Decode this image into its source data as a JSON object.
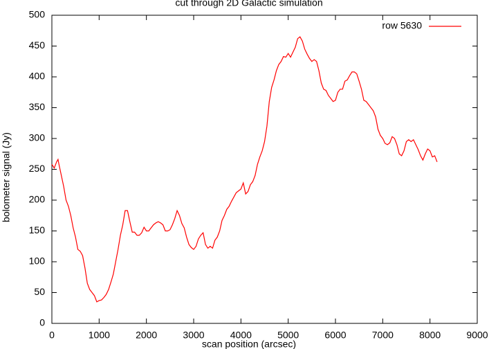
{
  "chart_data": {
    "type": "line",
    "title": "cut through 2D Galactic simulation",
    "x_label": "scan position (arcsec)",
    "y_label": "bolometer signal (Jy)",
    "legend_position": "top-right",
    "xlim": [
      0,
      9000
    ],
    "xticks": [
      0,
      1000,
      2000,
      3000,
      4000,
      5000,
      6000,
      7000,
      8000,
      9000
    ],
    "ylim": [
      0,
      500
    ],
    "yticks": [
      0,
      50,
      100,
      150,
      200,
      250,
      300,
      350,
      400,
      450,
      500
    ],
    "x": [
      0,
      50,
      100,
      130,
      150,
      200,
      250,
      300,
      350,
      400,
      450,
      500,
      550,
      600,
      650,
      700,
      750,
      800,
      850,
      900,
      950,
      1000,
      1050,
      1100,
      1150,
      1200,
      1250,
      1300,
      1350,
      1400,
      1450,
      1500,
      1550,
      1600,
      1650,
      1700,
      1750,
      1800,
      1850,
      1900,
      1950,
      2000,
      2050,
      2100,
      2150,
      2200,
      2250,
      2300,
      2350,
      2400,
      2450,
      2500,
      2550,
      2600,
      2650,
      2700,
      2750,
      2800,
      2850,
      2900,
      2950,
      3000,
      3050,
      3100,
      3150,
      3200,
      3250,
      3300,
      3350,
      3400,
      3450,
      3500,
      3550,
      3600,
      3650,
      3700,
      3750,
      3800,
      3850,
      3900,
      3950,
      4000,
      4050,
      4100,
      4150,
      4200,
      4250,
      4300,
      4350,
      4400,
      4450,
      4500,
      4550,
      4600,
      4650,
      4700,
      4750,
      4800,
      4850,
      4900,
      4950,
      5000,
      5050,
      5100,
      5150,
      5200,
      5250,
      5300,
      5350,
      5400,
      5450,
      5500,
      5550,
      5600,
      5650,
      5700,
      5750,
      5800,
      5850,
      5900,
      5950,
      6000,
      6050,
      6100,
      6150,
      6200,
      6250,
      6300,
      6350,
      6400,
      6450,
      6500,
      6550,
      6600,
      6650,
      6700,
      6750,
      6800,
      6850,
      6900,
      6950,
      7000,
      7050,
      7100,
      7150,
      7200,
      7250,
      7300,
      7350,
      7400,
      7450,
      7500,
      7550,
      7600,
      7650,
      7700,
      7750,
      7800,
      7850,
      7900,
      7950,
      8000,
      8050,
      8100,
      8150
    ],
    "series": [
      {
        "name": "row 5630",
        "color": "#ff0000",
        "values": [
          258,
          252,
          262,
          266,
          258,
          240,
          222,
          200,
          190,
          175,
          155,
          140,
          120,
          117,
          110,
          90,
          65,
          55,
          50,
          45,
          35,
          37,
          38,
          42,
          47,
          55,
          67,
          80,
          100,
          120,
          143,
          160,
          183,
          183,
          165,
          148,
          148,
          143,
          143,
          147,
          156,
          150,
          150,
          155,
          160,
          163,
          165,
          163,
          160,
          150,
          150,
          152,
          160,
          170,
          183,
          175,
          162,
          155,
          140,
          128,
          123,
          120,
          125,
          137,
          143,
          147,
          128,
          122,
          125,
          122,
          135,
          140,
          150,
          167,
          175,
          185,
          190,
          198,
          205,
          212,
          215,
          218,
          228,
          210,
          214,
          225,
          230,
          240,
          258,
          270,
          280,
          295,
          320,
          360,
          383,
          395,
          410,
          420,
          425,
          433,
          432,
          438,
          432,
          440,
          448,
          462,
          465,
          458,
          445,
          437,
          430,
          425,
          428,
          425,
          410,
          390,
          380,
          378,
          370,
          365,
          360,
          362,
          375,
          380,
          380,
          393,
          395,
          402,
          408,
          408,
          405,
          393,
          380,
          362,
          360,
          355,
          350,
          345,
          335,
          315,
          305,
          300,
          292,
          290,
          293,
          303,
          300,
          290,
          275,
          272,
          280,
          295,
          298,
          295,
          298,
          290,
          282,
          272,
          265,
          275,
          283,
          280,
          270,
          272,
          262
        ]
      }
    ]
  }
}
